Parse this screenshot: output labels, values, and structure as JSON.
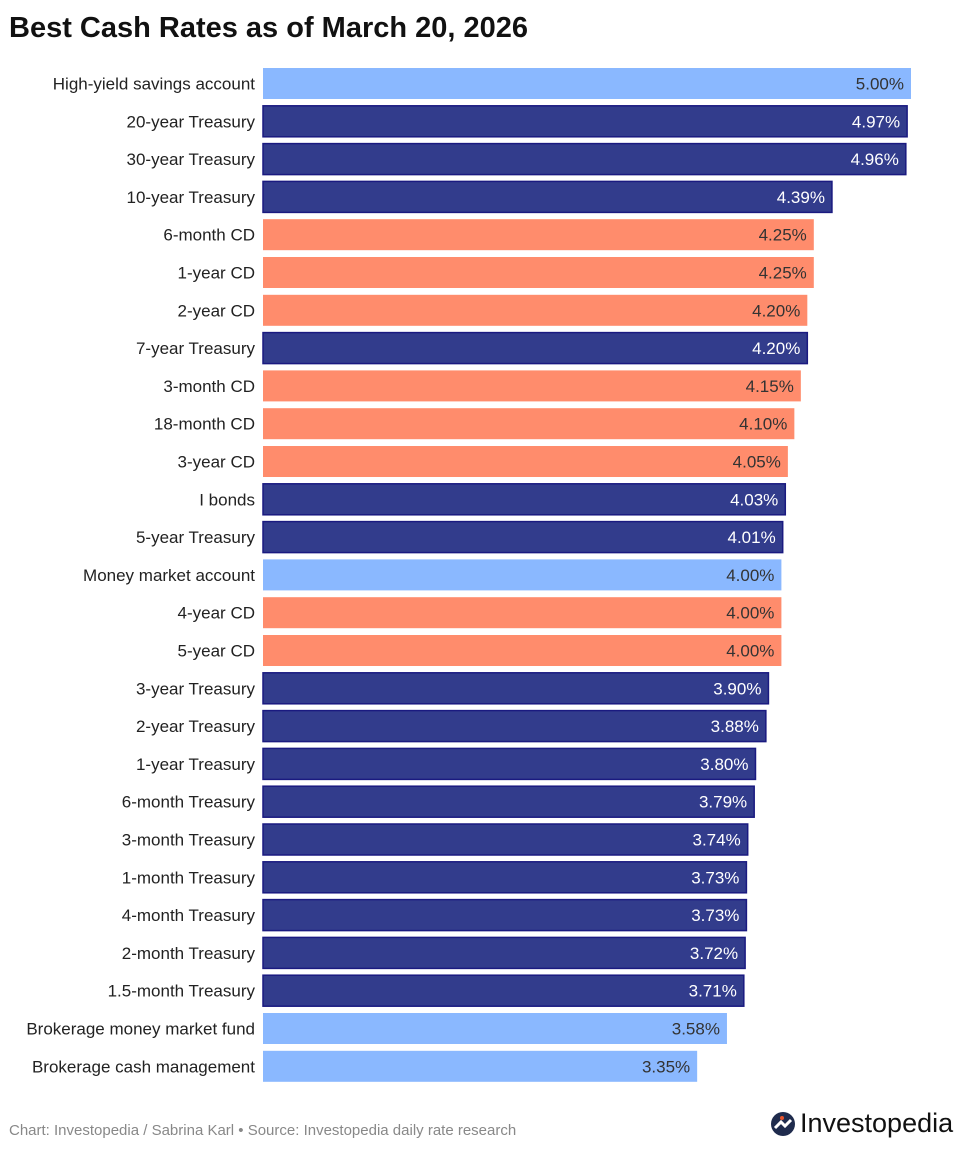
{
  "chart_data": {
    "type": "bar",
    "orientation": "horizontal",
    "title": "Best Cash Rates as of March 20, 2026",
    "categories": [
      "High-yield savings account",
      "20-year Treasury",
      "30-year Treasury",
      "10-year Treasury",
      "6-month CD",
      "1-year CD",
      "2-year CD",
      "7-year Treasury",
      "3-month CD",
      "18-month CD",
      "3-year CD",
      "I bonds",
      "5-year Treasury",
      "Money market account",
      "4-year CD",
      "5-year CD",
      "3-year Treasury",
      "2-year Treasury",
      "1-year Treasury",
      "6-month Treasury",
      "3-month Treasury",
      "1-month Treasury",
      "4-month Treasury",
      "2-month Treasury",
      "1.5-month Treasury",
      "Brokerage money market fund",
      "Brokerage cash management"
    ],
    "values": [
      5.0,
      4.97,
      4.96,
      4.39,
      4.25,
      4.25,
      4.2,
      4.2,
      4.15,
      4.1,
      4.05,
      4.03,
      4.01,
      4.0,
      4.0,
      4.0,
      3.9,
      3.88,
      3.8,
      3.79,
      3.74,
      3.73,
      3.73,
      3.72,
      3.71,
      3.58,
      3.35
    ],
    "labels": [
      "5.00%",
      "4.97%",
      "4.96%",
      "4.39%",
      "4.25%",
      "4.25%",
      "4.20%",
      "4.20%",
      "4.15%",
      "4.10%",
      "4.05%",
      "4.03%",
      "4.01%",
      "4.00%",
      "4.00%",
      "4.00%",
      "3.90%",
      "3.88%",
      "3.80%",
      "3.79%",
      "3.74%",
      "3.73%",
      "3.73%",
      "3.72%",
      "3.71%",
      "3.58%",
      "3.35%"
    ],
    "groups": [
      "savings",
      "treasury",
      "treasury",
      "treasury",
      "cd",
      "cd",
      "cd",
      "treasury",
      "cd",
      "cd",
      "cd",
      "treasury",
      "treasury",
      "savings",
      "cd",
      "cd",
      "treasury",
      "treasury",
      "treasury",
      "treasury",
      "treasury",
      "treasury",
      "treasury",
      "treasury",
      "treasury",
      "savings",
      "savings"
    ],
    "xlim": [
      0,
      5.0
    ],
    "grid": false,
    "colors": {
      "savings": "#8ab8ff",
      "treasury": "#323c8c",
      "cd": "#ff8c6c"
    },
    "label_colors": {
      "savings": "#333333",
      "treasury": "#ffffff",
      "cd": "#333333"
    }
  },
  "footer": "Chart: Investopedia / Sabrina Karl • Source: Investopedia daily rate research",
  "logo": "Investopedia"
}
